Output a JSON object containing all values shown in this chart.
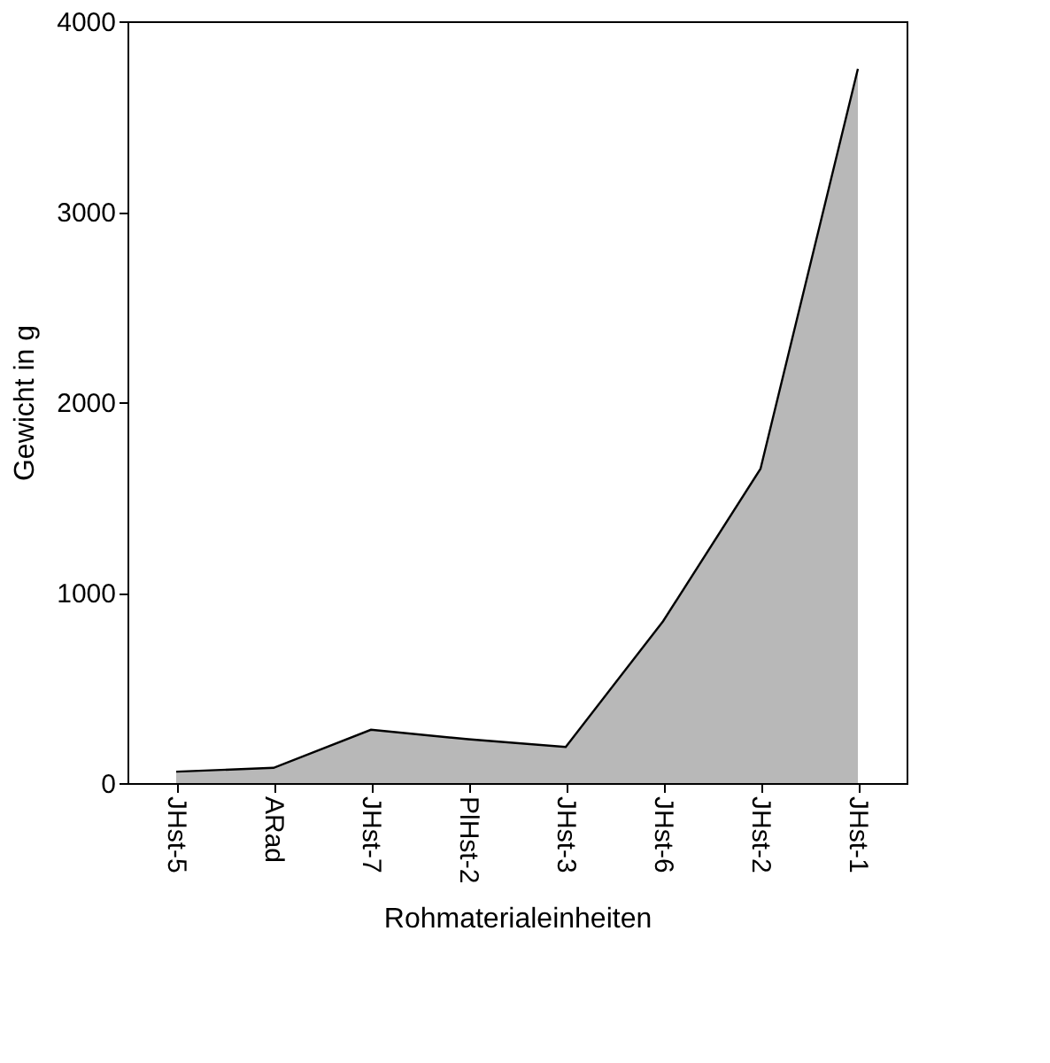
{
  "chart_data": {
    "type": "area",
    "xlabel": "Rohmaterialeinheiten",
    "ylabel": "Gewicht in g",
    "categories": [
      "JHst-5",
      "ARad",
      "JHst-7",
      "PlHst-2",
      "JHst-3",
      "JHst-6",
      "JHst-2",
      "JHst-1"
    ],
    "series": [
      {
        "color": "#b8b8b8",
        "values": [
          60,
          80,
          280,
          230,
          190,
          850,
          1650,
          3750
        ]
      }
    ],
    "ylim": [
      0,
      4000
    ],
    "yticks": [
      0,
      1000,
      2000,
      3000,
      4000
    ],
    "grid": false
  }
}
